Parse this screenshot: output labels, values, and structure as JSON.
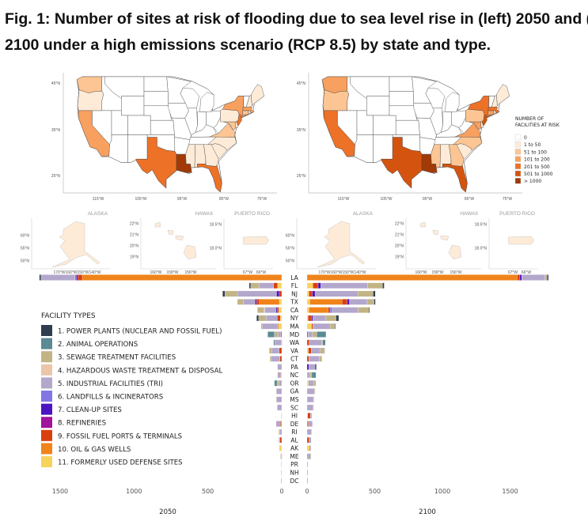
{
  "title": {
    "line1": "Fig. 1: Number of sites at risk of flooding due to sea level rise in (left) 2050 and (right)",
    "line2": "2100 under a high emissions scenario (RCP 8.5) by state and type."
  },
  "maps": {
    "lat_ticks": [
      "45°N",
      "35°N",
      "25°N"
    ],
    "lon_ticks": [
      "115°W",
      "105°W",
      "95°W",
      "85°W",
      "75°W"
    ],
    "insets": {
      "alaska": {
        "title": "ALASKA",
        "lat_ticks": [
          "60°N",
          "55°N",
          "50°N"
        ],
        "lon_ticks": [
          "170°W",
          "160°W",
          "150°W",
          "140°W"
        ]
      },
      "hawaii": {
        "title": "HAWAII",
        "lat_ticks": [
          "22°N",
          "21°N",
          "20°N",
          "19°N"
        ],
        "lon_ticks": [
          "160°W",
          "158°W",
          "156°W"
        ]
      },
      "puerto_rico": {
        "title": "PUERTO RICO",
        "lat_ticks": [
          "18.5°N",
          "18.0°N"
        ],
        "lon_ticks": [
          "67°W",
          "66°W"
        ]
      }
    },
    "legend": {
      "title_line1": "NUMBER OF",
      "title_line2": "FACILITIES AT RISK",
      "bins": [
        "0",
        "1 to 50",
        "51 to 100",
        "101 to 200",
        "201 to 500",
        "501 to 1000",
        "> 1000"
      ],
      "colors": [
        "#ffffff",
        "#fdebd8",
        "#fcc593",
        "#f8a05f",
        "#ed7127",
        "#d4540f",
        "#a13a07"
      ]
    },
    "bins_2050": {
      "WA": 2,
      "OR": 1,
      "CA": 3,
      "TX": 4,
      "LA": 6,
      "MS": 1,
      "AL": 1,
      "GA": 1,
      "FL": 4,
      "SC": 1,
      "NC": 1,
      "VA": 2,
      "MD": 2,
      "DE": 1,
      "PA": 1,
      "NJ": 4,
      "NY": 3,
      "CT": 2,
      "RI": 1,
      "MA": 3,
      "NH": 1,
      "ME": 1,
      "AK": 1,
      "HI": 1,
      "PR": 1
    },
    "bins_2100": {
      "WA": 3,
      "OR": 2,
      "CA": 4,
      "TX": 5,
      "LA": 6,
      "MS": 2,
      "AL": 1,
      "GA": 2,
      "FL": 5,
      "SC": 1,
      "NC": 2,
      "VA": 3,
      "MD": 3,
      "DE": 1,
      "PA": 2,
      "NJ": 5,
      "NY": 4,
      "CT": 3,
      "RI": 1,
      "MA": 4,
      "NH": 1,
      "ME": 1,
      "AK": 1,
      "HI": 1,
      "PR": 1
    }
  },
  "facility_legend": {
    "title": "FACILITY TYPES",
    "items": [
      {
        "label": "1. POWER PLANTS (NUCLEAR AND FOSSIL FUEL)",
        "color": "#2f3e4e"
      },
      {
        "label": "2. ANIMAL OPERATIONS",
        "color": "#5a8a94"
      },
      {
        "label": "3. SEWAGE TREATMENT FACILITIES",
        "color": "#c2b486"
      },
      {
        "label": "4. HAZARDOUS WASTE TREATMENT & DISPOSAL",
        "color": "#ebc6a8"
      },
      {
        "label": "5. INDUSTRIAL FACILITIES (TRI)",
        "color": "#b3a7cc"
      },
      {
        "label": "6. LANDFILLS & INCINERATORS",
        "color": "#8276e6"
      },
      {
        "label": "7. CLEAN-UP SITES",
        "color": "#4b13c2"
      },
      {
        "label": "8. REFINERIES",
        "color": "#a2139c"
      },
      {
        "label": "9. FOSSIL FUEL PORTS & TERMINALS",
        "color": "#d9400f"
      },
      {
        "label": "10. OIL & GAS WELLS",
        "color": "#f0831a"
      },
      {
        "label": "11. FORMERLY USED DEFENSE SITES",
        "color": "#f7d35c"
      }
    ]
  },
  "chart_data": {
    "type": "bar",
    "orientation": "horizontal-stacked-butterfly",
    "categories": [
      "LA",
      "FL",
      "NJ",
      "TX",
      "CA",
      "NY",
      "MA",
      "MD",
      "WA",
      "VA",
      "CT",
      "PA",
      "NC",
      "OR",
      "GA",
      "MS",
      "SC",
      "HI",
      "DE",
      "RI",
      "AL",
      "AK",
      "ME",
      "PR",
      "NH",
      "DC"
    ],
    "series_names": [
      "Power plants",
      "Animal operations",
      "Sewage treatment",
      "Hazardous waste",
      "Industrial (TRI)",
      "Landfills & incinerators",
      "Clean-up sites",
      "Refineries",
      "Fossil fuel ports & terminals",
      "Oil & gas wells",
      "Formerly used defense sites"
    ],
    "panels": [
      {
        "year": "2050",
        "xlim": [
          0,
          1500
        ],
        "x_ticks": [
          "1500",
          "1000",
          "500",
          "0"
        ],
        "x_tick_values": [
          1500,
          1000,
          500,
          0
        ],
        "values": {
          "LA": [
            10,
            0,
            0,
            0,
            230,
            10,
            10,
            0,
            30,
            1350,
            0
          ],
          "FL": [
            10,
            0,
            55,
            0,
            100,
            0,
            0,
            0,
            27,
            0,
            28
          ],
          "NJ": [
            15,
            0,
            85,
            0,
            265,
            0,
            18,
            0,
            17,
            0,
            0
          ],
          "TX": [
            0,
            0,
            40,
            0,
            80,
            0,
            9,
            0,
            20,
            135,
            16
          ],
          "CA": [
            0,
            0,
            45,
            5,
            75,
            0,
            8,
            0,
            12,
            0,
            20
          ],
          "NY": [
            14,
            0,
            50,
            0,
            75,
            0,
            0,
            0,
            21,
            0,
            10
          ],
          "MA": [
            0,
            0,
            8,
            0,
            105,
            0,
            0,
            0,
            5,
            0,
            22
          ],
          "MD": [
            0,
            45,
            25,
            0,
            18,
            0,
            0,
            0,
            7,
            0,
            0
          ],
          "WA": [
            0,
            8,
            0,
            0,
            45,
            0,
            0,
            0,
            2,
            0,
            0
          ],
          "VA": [
            0,
            0,
            18,
            0,
            50,
            0,
            0,
            0,
            17,
            0,
            0
          ],
          "CT": [
            0,
            0,
            10,
            0,
            58,
            0,
            0,
            0,
            12,
            0,
            0
          ],
          "PA": [
            0,
            0,
            0,
            0,
            25,
            0,
            0,
            0,
            3,
            0,
            0
          ],
          "NC": [
            0,
            0,
            0,
            0,
            20,
            0,
            0,
            0,
            3,
            0,
            5
          ],
          "OR": [
            0,
            18,
            15,
            0,
            17,
            0,
            0,
            0,
            0,
            0,
            0
          ],
          "GA": [
            0,
            0,
            3,
            0,
            35,
            0,
            0,
            0,
            0,
            0,
            0
          ],
          "MS": [
            0,
            0,
            3,
            0,
            35,
            0,
            0,
            0,
            0,
            0,
            0
          ],
          "SC": [
            0,
            0,
            2,
            0,
            30,
            0,
            0,
            0,
            0,
            0,
            0
          ],
          "HI": [
            0,
            0,
            0,
            0,
            3,
            0,
            0,
            0,
            0,
            0,
            2
          ],
          "DE": [
            0,
            0,
            0,
            0,
            28,
            0,
            0,
            0,
            8,
            0,
            2
          ],
          "RI": [
            0,
            0,
            5,
            0,
            10,
            0,
            0,
            0,
            5,
            0,
            0
          ],
          "AL": [
            0,
            0,
            0,
            0,
            8,
            0,
            0,
            0,
            12,
            0,
            0
          ],
          "AK": [
            0,
            0,
            0,
            0,
            0,
            0,
            0,
            0,
            3,
            0,
            12
          ],
          "ME": [
            0,
            0,
            3,
            0,
            5,
            0,
            0,
            0,
            2,
            0,
            0
          ],
          "PR": [
            0,
            0,
            0,
            0,
            3,
            0,
            0,
            0,
            0,
            0,
            0
          ],
          "NH": [
            0,
            0,
            2,
            0,
            3,
            0,
            0,
            0,
            0,
            0,
            0
          ],
          "DC": [
            0,
            0,
            0,
            0,
            5,
            0,
            0,
            0,
            0,
            0,
            0
          ]
        }
      },
      {
        "year": "2100",
        "xlim": [
          0,
          1500
        ],
        "x_ticks": [
          "0",
          "500",
          "1000",
          "1500"
        ],
        "x_tick_values": [
          0,
          500,
          1000,
          1500
        ],
        "values": {
          "LA": [
            10,
            0,
            15,
            0,
            172,
            0,
            14,
            0,
            20,
            1553,
            0
          ],
          "FL": [
            12,
            0,
            111,
            0,
            345,
            0,
            20,
            0,
            39,
            0,
            43
          ],
          "NJ": [
            16,
            0,
            113,
            0,
            316,
            0,
            20,
            0,
            25,
            0,
            14
          ],
          "TX": [
            10,
            0,
            51,
            0,
            131,
            0,
            16,
            0,
            39,
            238,
            20
          ],
          "CA": [
            6,
            0,
            78,
            0,
            193,
            16,
            0,
            0,
            14,
            142,
            14
          ],
          "NY": [
            20,
            0,
            74,
            0,
            97,
            0,
            10,
            0,
            25,
            0,
            8
          ],
          "MA": [
            6,
            0,
            33,
            0,
            127,
            0,
            0,
            0,
            10,
            0,
            33
          ],
          "MD": [
            0,
            68,
            33,
            0,
            31,
            0,
            0,
            0,
            8,
            0,
            0
          ],
          "WA": [
            0,
            20,
            7,
            0,
            92,
            0,
            0,
            0,
            16,
            0,
            0
          ],
          "VA": [
            3,
            0,
            29,
            0,
            68,
            0,
            0,
            0,
            20,
            0,
            10
          ],
          "CT": [
            0,
            0,
            18,
            0,
            78,
            0,
            0,
            0,
            14,
            0,
            0
          ],
          "PA": [
            10,
            0,
            0,
            0,
            45,
            0,
            14,
            0,
            0,
            0,
            0
          ],
          "NC": [
            0,
            30,
            15,
            0,
            20,
            0,
            0,
            0,
            0,
            0,
            0
          ],
          "OR": [
            0,
            0,
            15,
            0,
            40,
            0,
            0,
            0,
            0,
            0,
            10
          ],
          "GA": [
            0,
            0,
            5,
            0,
            50,
            0,
            0,
            0,
            5,
            0,
            0
          ],
          "MS": [
            0,
            0,
            5,
            0,
            45,
            0,
            0,
            0,
            2,
            0,
            0
          ],
          "SC": [
            0,
            0,
            3,
            0,
            42,
            0,
            0,
            0,
            3,
            0,
            0
          ],
          "HI": [
            0,
            0,
            0,
            0,
            10,
            0,
            0,
            0,
            20,
            0,
            5
          ],
          "DE": [
            0,
            0,
            0,
            0,
            30,
            0,
            0,
            0,
            8,
            0,
            2
          ],
          "RI": [
            0,
            0,
            5,
            0,
            25,
            0,
            0,
            0,
            5,
            0,
            0
          ],
          "AL": [
            0,
            0,
            0,
            0,
            15,
            0,
            0,
            0,
            15,
            0,
            0
          ],
          "AK": [
            0,
            0,
            0,
            0,
            5,
            0,
            0,
            0,
            5,
            0,
            20
          ],
          "ME": [
            0,
            0,
            5,
            0,
            20,
            0,
            0,
            0,
            5,
            0,
            0
          ],
          "PR": [
            0,
            0,
            0,
            0,
            6,
            0,
            0,
            0,
            0,
            0,
            0
          ],
          "NH": [
            0,
            0,
            0,
            0,
            6,
            0,
            0,
            0,
            0,
            0,
            0
          ],
          "DC": [
            0,
            0,
            0,
            0,
            6,
            0,
            0,
            0,
            0,
            0,
            0
          ]
        }
      }
    ]
  }
}
